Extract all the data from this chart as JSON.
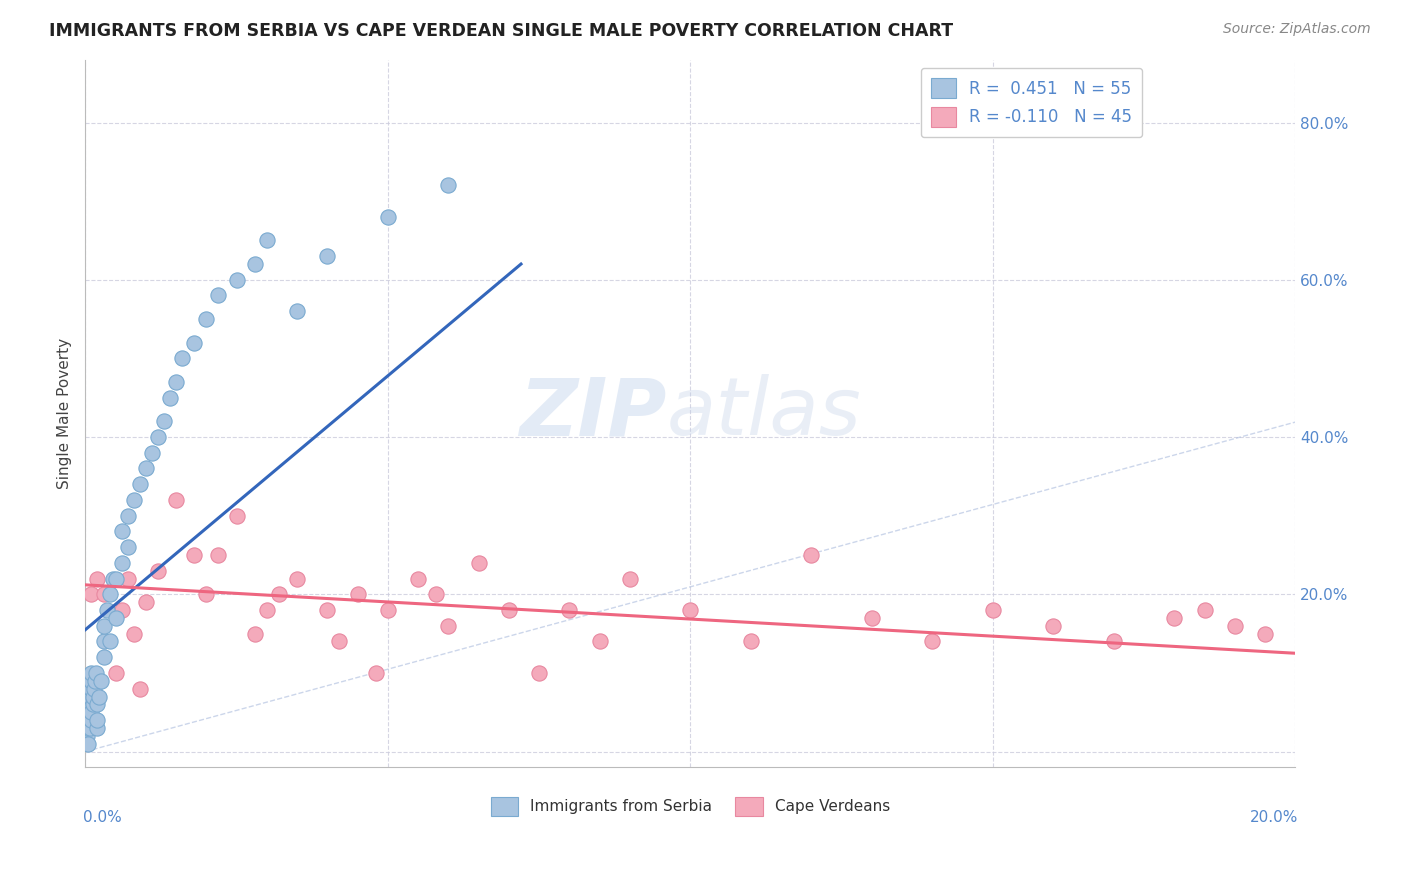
{
  "title": "IMMIGRANTS FROM SERBIA VS CAPE VERDEAN SINGLE MALE POVERTY CORRELATION CHART",
  "source": "Source: ZipAtlas.com",
  "ylabel": "Single Male Poverty",
  "legend_series1": "Immigrants from Serbia",
  "legend_series2": "Cape Verdeans",
  "xlim": [
    0.0,
    0.2
  ],
  "ylim": [
    -0.02,
    0.88
  ],
  "blue_color": "#A8C4E0",
  "blue_edge_color": "#7AAAD0",
  "pink_color": "#F4AABB",
  "pink_edge_color": "#E888A0",
  "blue_line_color": "#3366BB",
  "pink_line_color": "#EE6680",
  "right_label_color": "#5588CC",
  "title_color": "#222222",
  "source_color": "#888888",
  "grid_color": "#CCCCDD",
  "serbia_x": [
    0.0002,
    0.0003,
    0.0004,
    0.0005,
    0.0005,
    0.0006,
    0.0007,
    0.0008,
    0.0009,
    0.001,
    0.001,
    0.001,
    0.001,
    0.0012,
    0.0013,
    0.0015,
    0.0016,
    0.0018,
    0.002,
    0.002,
    0.002,
    0.0022,
    0.0025,
    0.003,
    0.003,
    0.003,
    0.0035,
    0.004,
    0.004,
    0.0045,
    0.005,
    0.005,
    0.006,
    0.006,
    0.007,
    0.007,
    0.008,
    0.009,
    0.01,
    0.011,
    0.012,
    0.013,
    0.014,
    0.015,
    0.016,
    0.018,
    0.02,
    0.022,
    0.025,
    0.028,
    0.03,
    0.035,
    0.04,
    0.05,
    0.06
  ],
  "serbia_y": [
    0.02,
    0.03,
    0.04,
    0.05,
    0.01,
    0.06,
    0.03,
    0.07,
    0.04,
    0.05,
    0.08,
    0.09,
    0.1,
    0.06,
    0.07,
    0.08,
    0.09,
    0.1,
    0.03,
    0.04,
    0.06,
    0.07,
    0.09,
    0.12,
    0.14,
    0.16,
    0.18,
    0.14,
    0.2,
    0.22,
    0.17,
    0.22,
    0.24,
    0.28,
    0.26,
    0.3,
    0.32,
    0.34,
    0.36,
    0.38,
    0.4,
    0.42,
    0.45,
    0.47,
    0.5,
    0.52,
    0.55,
    0.58,
    0.6,
    0.62,
    0.65,
    0.56,
    0.63,
    0.68,
    0.72
  ],
  "capeverde_x": [
    0.001,
    0.002,
    0.003,
    0.005,
    0.006,
    0.007,
    0.008,
    0.009,
    0.01,
    0.012,
    0.015,
    0.018,
    0.02,
    0.022,
    0.025,
    0.028,
    0.03,
    0.032,
    0.035,
    0.04,
    0.042,
    0.045,
    0.048,
    0.05,
    0.055,
    0.058,
    0.06,
    0.065,
    0.07,
    0.075,
    0.08,
    0.085,
    0.09,
    0.1,
    0.11,
    0.12,
    0.13,
    0.14,
    0.15,
    0.16,
    0.17,
    0.18,
    0.185,
    0.19,
    0.195
  ],
  "capeverde_y": [
    0.2,
    0.22,
    0.2,
    0.1,
    0.18,
    0.22,
    0.15,
    0.08,
    0.19,
    0.23,
    0.32,
    0.25,
    0.2,
    0.25,
    0.3,
    0.15,
    0.18,
    0.2,
    0.22,
    0.18,
    0.14,
    0.2,
    0.1,
    0.18,
    0.22,
    0.2,
    0.16,
    0.24,
    0.18,
    0.1,
    0.18,
    0.14,
    0.22,
    0.18,
    0.14,
    0.25,
    0.17,
    0.14,
    0.18,
    0.16,
    0.14,
    0.17,
    0.18,
    0.16,
    0.15
  ],
  "blue_line_x": [
    0.0,
    0.072
  ],
  "blue_line_y": [
    0.155,
    0.62
  ],
  "pink_line_x": [
    0.0,
    0.2
  ],
  "pink_line_y": [
    0.212,
    0.125
  ],
  "dashed_line_x": [
    0.0,
    0.42
  ],
  "dashed_line_y": [
    0.0,
    0.88
  ],
  "yticks": [
    0.0,
    0.2,
    0.4,
    0.6,
    0.8
  ],
  "xticks": [
    0.0,
    0.05,
    0.1,
    0.15,
    0.2
  ],
  "right_ytick_labels": [
    "80.0%",
    "60.0%",
    "40.0%",
    "20.0%"
  ],
  "right_ytick_vals": [
    0.8,
    0.6,
    0.4,
    0.2
  ],
  "marker_size": 120
}
